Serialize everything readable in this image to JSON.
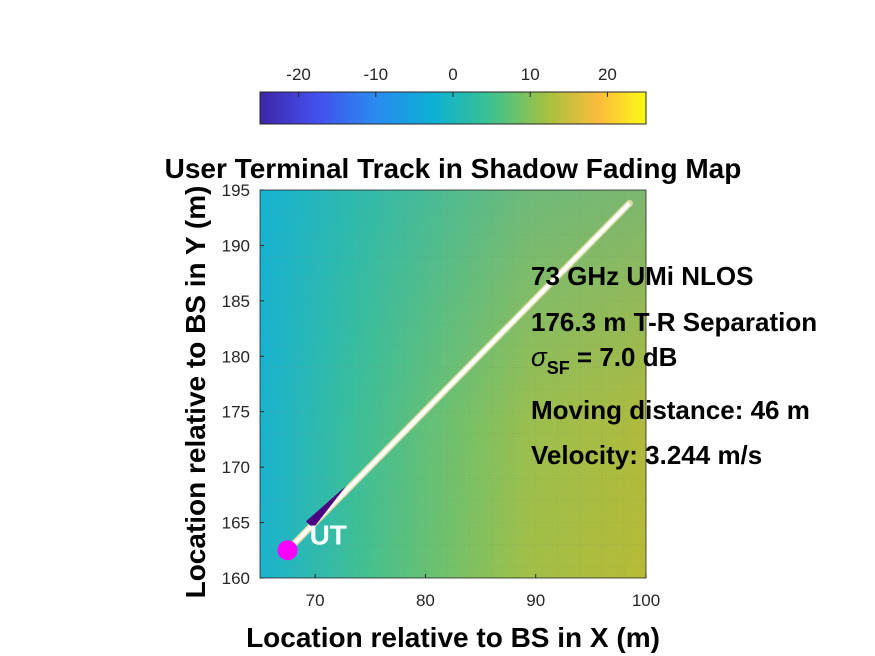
{
  "chart_data": {
    "type": "heatmap",
    "title": "User Terminal Track in Shadow Fading Map",
    "xlabel": "Location relative to BS in X (m)",
    "ylabel": "Location relative to BS in Y (m)",
    "xlim": [
      65,
      100
    ],
    "ylim": [
      160,
      195
    ],
    "xticks": [
      70,
      80,
      90,
      100
    ],
    "yticks": [
      160,
      165,
      170,
      175,
      180,
      185,
      190,
      195
    ],
    "grid": true,
    "colormap": "parula",
    "colorbar": {
      "location": "top",
      "clim": [
        -25,
        25
      ],
      "ticks": [
        -20,
        -10,
        0,
        10,
        20
      ],
      "tick_labels": [
        "-20",
        "-10",
        "0",
        "10",
        "20"
      ]
    },
    "field": {
      "description_values_dB": "shadow fading increasing from left to right",
      "x": [
        65,
        75,
        85,
        100
      ],
      "values_at_bottom": [
        1,
        6,
        11,
        13
      ],
      "values_at_top": [
        0,
        3,
        8,
        11
      ]
    },
    "track": {
      "start": [
        67.5,
        162.5
      ],
      "end": [
        98.5,
        193.8
      ],
      "color": "#ffffff"
    },
    "ut_marker": {
      "x": 67.5,
      "y": 162.5,
      "label": "UT",
      "color": "#ff00ff"
    },
    "direction_arrow": {
      "from": [
        69.5,
        164.8
      ],
      "to": [
        72.8,
        168.3
      ],
      "color": "#4b0082"
    },
    "annotations": [
      {
        "text": "73 GHz UMi NLOS"
      },
      {
        "text": "176.3 m T-R Separation"
      },
      {
        "sigma_symbol": "σ",
        "sigma_sub": "SF",
        "text": " = 7.0 dB"
      },
      {
        "text": "Moving distance: 46 m"
      },
      {
        "text": "Velocity: 3.244 m/s"
      }
    ]
  }
}
